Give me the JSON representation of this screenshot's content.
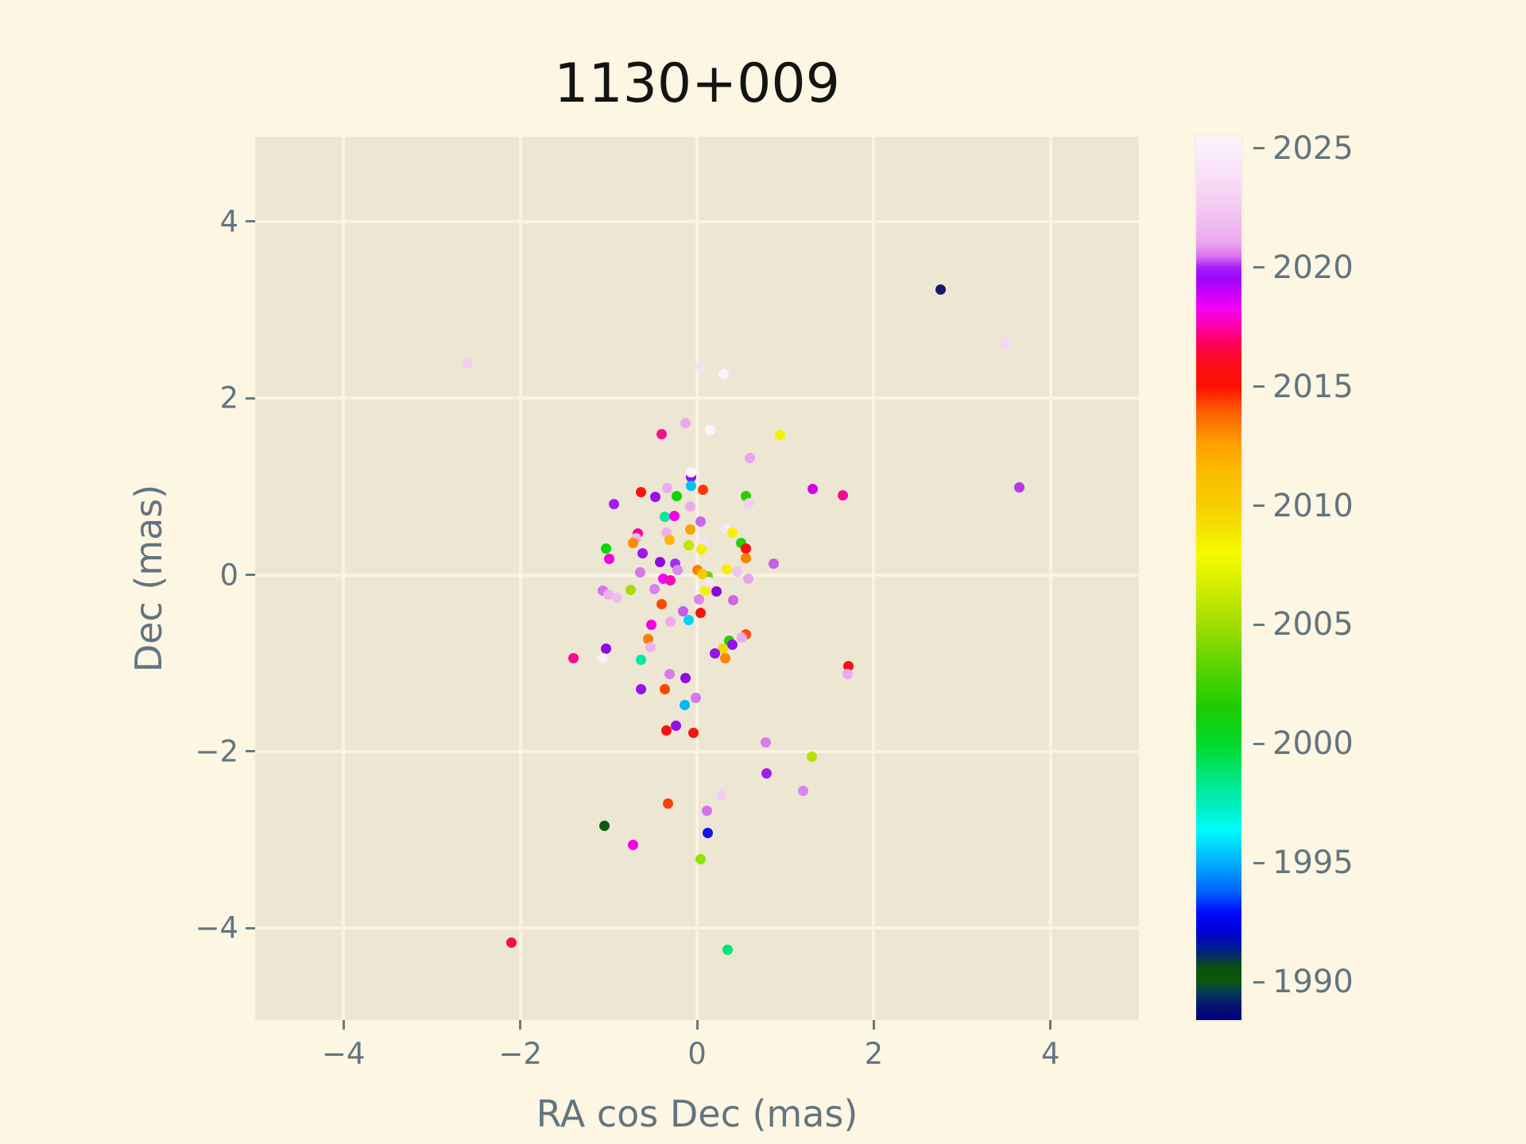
{
  "colors": {
    "figure_bg": "#fdf6e3",
    "axes_bg": "#ece6d3",
    "grid": "#faf3e1",
    "tick_text": "#62757f",
    "title_text": "#141414"
  },
  "chart_data": {
    "type": "scatter",
    "title": "1130+009",
    "xlabel": "RA cos Dec (mas)",
    "ylabel": "Dec (mas)",
    "xlim": [
      -5,
      5
    ],
    "ylim": [
      -5.04,
      4.96
    ],
    "xticks": [
      -4,
      -2,
      0,
      2,
      4
    ],
    "yticks": [
      -4,
      -2,
      0,
      2,
      4
    ],
    "grid": true,
    "marker_size_px": 13,
    "colorbar": {
      "colormap": "gist_ncar",
      "vmin": 1988.4,
      "vmax": 2025.5,
      "ticks": [
        2025,
        2020,
        2015,
        2010,
        2005,
        2000,
        1995,
        1990
      ],
      "gradient_stops": [
        {
          "pos": 0.0,
          "color": "#fdf4fd"
        },
        {
          "pos": 0.03,
          "color": "#fae6f9"
        },
        {
          "pos": 0.06,
          "color": "#f6d7f5"
        },
        {
          "pos": 0.095,
          "color": "#f0bef0"
        },
        {
          "pos": 0.12,
          "color": "#eba6ee"
        },
        {
          "pos": 0.135,
          "color": "#dc73f0"
        },
        {
          "pos": 0.148,
          "color": "#a81ff6"
        },
        {
          "pos": 0.16,
          "color": "#9a07f8"
        },
        {
          "pos": 0.175,
          "color": "#c400fa"
        },
        {
          "pos": 0.195,
          "color": "#f400f4"
        },
        {
          "pos": 0.215,
          "color": "#fd00a8"
        },
        {
          "pos": 0.235,
          "color": "#fe0054"
        },
        {
          "pos": 0.255,
          "color": "#fd0d1c"
        },
        {
          "pos": 0.283,
          "color": "#fb0f00"
        },
        {
          "pos": 0.31,
          "color": "#fc5c00"
        },
        {
          "pos": 0.345,
          "color": "#fd9d00"
        },
        {
          "pos": 0.38,
          "color": "#fbbc00"
        },
        {
          "pos": 0.418,
          "color": "#f6cd00"
        },
        {
          "pos": 0.45,
          "color": "#f3e800"
        },
        {
          "pos": 0.47,
          "color": "#f8fb00"
        },
        {
          "pos": 0.505,
          "color": "#d8ef00"
        },
        {
          "pos": 0.553,
          "color": "#a0dc00"
        },
        {
          "pos": 0.6,
          "color": "#58d400"
        },
        {
          "pos": 0.645,
          "color": "#1ecc00"
        },
        {
          "pos": 0.688,
          "color": "#00d92c"
        },
        {
          "pos": 0.725,
          "color": "#00e77e"
        },
        {
          "pos": 0.76,
          "color": "#00efc4"
        },
        {
          "pos": 0.785,
          "color": "#00fbfb"
        },
        {
          "pos": 0.823,
          "color": "#00acfb"
        },
        {
          "pos": 0.855,
          "color": "#0063fb"
        },
        {
          "pos": 0.878,
          "color": "#000bfb"
        },
        {
          "pos": 0.9,
          "color": "#0000d4"
        },
        {
          "pos": 0.92,
          "color": "#001e8e"
        },
        {
          "pos": 0.94,
          "color": "#0b4f12"
        },
        {
          "pos": 0.955,
          "color": "#0a5a08"
        },
        {
          "pos": 0.97,
          "color": "#073860"
        },
        {
          "pos": 0.985,
          "color": "#02106e"
        },
        {
          "pos": 1.0,
          "color": "#000080"
        }
      ]
    },
    "points": [
      {
        "x": 2.76,
        "y": 3.23,
        "yr": 1988.6,
        "c": "#121a6e"
      },
      {
        "x": 3.49,
        "y": 2.63,
        "yr": 2024.0,
        "c": "#f6d6f4"
      },
      {
        "x": -2.59,
        "y": 2.39,
        "yr": 2023.5,
        "c": "#f2cdf0"
      },
      {
        "x": 0.04,
        "y": 2.37,
        "yr": 2024.2,
        "c": "#f8def5"
      },
      {
        "x": 0.3,
        "y": 2.28,
        "yr": 2025.2,
        "c": "#fdf2fc"
      },
      {
        "x": -0.13,
        "y": 1.72,
        "yr": 2022.0,
        "c": "#eba7ec"
      },
      {
        "x": -0.4,
        "y": 1.59,
        "yr": 2017.0,
        "c": "#f2118f"
      },
      {
        "x": 0.15,
        "y": 1.64,
        "yr": 2025.2,
        "c": "#fdf4fd"
      },
      {
        "x": 0.94,
        "y": 1.58,
        "yr": 2008.4,
        "c": "#f8ee00"
      },
      {
        "x": 0.6,
        "y": 1.32,
        "yr": 2022.0,
        "c": "#eaa2eb"
      },
      {
        "x": 3.65,
        "y": 0.99,
        "yr": 2020.7,
        "c": "#b935ea"
      },
      {
        "x": 1.31,
        "y": 0.97,
        "yr": 2019.2,
        "c": "#d303e6"
      },
      {
        "x": 1.65,
        "y": 0.9,
        "yr": 2016.9,
        "c": "#f30d92"
      },
      {
        "x": -0.07,
        "y": 1.11,
        "yr": 2020.2,
        "c": "#9013e8"
      },
      {
        "x": -0.07,
        "y": 1.16,
        "yr": 2025.3,
        "c": "#fdf4fd"
      },
      {
        "x": -0.07,
        "y": 1.01,
        "yr": 1996.5,
        "c": "#00c3f2"
      },
      {
        "x": 0.07,
        "y": 0.96,
        "yr": 2014.4,
        "c": "#fb3a05"
      },
      {
        "x": -0.63,
        "y": 0.94,
        "yr": 2015.4,
        "c": "#f91111"
      },
      {
        "x": -0.34,
        "y": 0.98,
        "yr": 2022.4,
        "c": "#eeadee"
      },
      {
        "x": -0.47,
        "y": 0.88,
        "yr": 2020.2,
        "c": "#9a0ff2"
      },
      {
        "x": -0.23,
        "y": 0.89,
        "yr": 2001.8,
        "c": "#0fd400"
      },
      {
        "x": 0.55,
        "y": 0.89,
        "yr": 2002.8,
        "c": "#2ecc00"
      },
      {
        "x": 0.59,
        "y": 0.81,
        "yr": 2023.6,
        "c": "#f3d0f2"
      },
      {
        "x": -0.94,
        "y": 0.8,
        "yr": 2020.4,
        "c": "#a21df0"
      },
      {
        "x": -0.08,
        "y": 0.77,
        "yr": 2022.4,
        "c": "#edabee"
      },
      {
        "x": -0.36,
        "y": 0.66,
        "yr": 1998.4,
        "c": "#00e8a4"
      },
      {
        "x": -0.26,
        "y": 0.67,
        "yr": 2018.0,
        "c": "#f202e2"
      },
      {
        "x": 0.04,
        "y": 0.6,
        "yr": 2021.2,
        "c": "#cb63ea"
      },
      {
        "x": -0.08,
        "y": 0.51,
        "yr": 2011.7,
        "c": "#fca403"
      },
      {
        "x": 0.33,
        "y": 0.52,
        "yr": 2024.6,
        "c": "#fae8f8"
      },
      {
        "x": 0.4,
        "y": 0.48,
        "yr": 2008.4,
        "c": "#f6f000"
      },
      {
        "x": -0.35,
        "y": 0.48,
        "yr": 2022.4,
        "c": "#eeaeee"
      },
      {
        "x": -0.67,
        "y": 0.47,
        "yr": 2017.4,
        "c": "#f1079e"
      },
      {
        "x": -0.69,
        "y": 0.41,
        "yr": 2022.6,
        "c": "#efb5ef"
      },
      {
        "x": -0.72,
        "y": 0.36,
        "yr": 2012.2,
        "c": "#fb8a00"
      },
      {
        "x": -0.31,
        "y": 0.4,
        "yr": 2011.3,
        "c": "#fdb500"
      },
      {
        "x": -1.03,
        "y": 0.3,
        "yr": 2001.5,
        "c": "#06d806"
      },
      {
        "x": -0.99,
        "y": 0.18,
        "yr": 2018.0,
        "c": "#f501df"
      },
      {
        "x": -0.62,
        "y": 0.24,
        "yr": 2020.3,
        "c": "#9c13f0"
      },
      {
        "x": -0.09,
        "y": 0.33,
        "yr": 2006.6,
        "c": "#c6e400"
      },
      {
        "x": 0.06,
        "y": 0.36,
        "yr": 2024.2,
        "c": "#f9e0f7"
      },
      {
        "x": 0.05,
        "y": 0.29,
        "yr": 2008.2,
        "c": "#f4ef00"
      },
      {
        "x": 0.5,
        "y": 0.36,
        "yr": 2002.8,
        "c": "#2ccc02"
      },
      {
        "x": 0.55,
        "y": 0.3,
        "yr": 2015.4,
        "c": "#f81010"
      },
      {
        "x": 0.55,
        "y": 0.19,
        "yr": 2012.6,
        "c": "#fb7e00"
      },
      {
        "x": 0.87,
        "y": 0.13,
        "yr": 2021.1,
        "c": "#c75fe8"
      },
      {
        "x": -0.42,
        "y": 0.14,
        "yr": 2020.3,
        "c": "#8f0be0"
      },
      {
        "x": -0.25,
        "y": 0.13,
        "yr": 2020.6,
        "c": "#a431ee"
      },
      {
        "x": -0.22,
        "y": 0.05,
        "yr": 2021.9,
        "c": "#dc8aec"
      },
      {
        "x": -0.64,
        "y": 0.03,
        "yr": 2021.7,
        "c": "#d678ea"
      },
      {
        "x": 0.0,
        "y": 0.05,
        "yr": 2012.5,
        "c": "#fb8000"
      },
      {
        "x": 0.12,
        "y": -0.02,
        "yr": 2004.3,
        "c": "#6fd400"
      },
      {
        "x": 0.06,
        "y": 0.01,
        "yr": 2010.4,
        "c": "#f7c900"
      },
      {
        "x": 0.34,
        "y": 0.06,
        "yr": 2008.3,
        "c": "#f6f000"
      },
      {
        "x": 0.45,
        "y": 0.04,
        "yr": 2023.0,
        "c": "#eec4ef"
      },
      {
        "x": 0.58,
        "y": -0.04,
        "yr": 2022.2,
        "c": "#eaa4ea"
      },
      {
        "x": 0.22,
        "y": -0.19,
        "yr": 2020.2,
        "c": "#8a06dd"
      },
      {
        "x": 0.09,
        "y": -0.18,
        "yr": 2008.3,
        "c": "#f6ef00"
      },
      {
        "x": 0.41,
        "y": -0.29,
        "yr": 2021.0,
        "c": "#cc66e8"
      },
      {
        "x": 0.02,
        "y": -0.28,
        "yr": 2021.8,
        "c": "#db85ec"
      },
      {
        "x": -0.38,
        "y": -0.04,
        "yr": 2018.1,
        "c": "#f800f0"
      },
      {
        "x": -0.3,
        "y": -0.06,
        "yr": 2017.3,
        "c": "#f60bb0"
      },
      {
        "x": 0.13,
        "y": -0.08,
        "yr": 2024.3,
        "c": "#fae5f8"
      },
      {
        "x": -0.75,
        "y": -0.17,
        "yr": 2005.6,
        "c": "#a8dc00"
      },
      {
        "x": -0.48,
        "y": -0.16,
        "yr": 2021.8,
        "c": "#da82ec"
      },
      {
        "x": -1.07,
        "y": -0.18,
        "yr": 2021.6,
        "c": "#d573eb"
      },
      {
        "x": -1.0,
        "y": -0.22,
        "yr": 2022.5,
        "c": "#eeb0ee"
      },
      {
        "x": -0.9,
        "y": -0.26,
        "yr": 2022.8,
        "c": "#f0bdf0"
      },
      {
        "x": -0.4,
        "y": -0.33,
        "yr": 2013.9,
        "c": "#fb4a04"
      },
      {
        "x": -0.16,
        "y": -0.41,
        "yr": 2021.0,
        "c": "#c85cea"
      },
      {
        "x": -0.09,
        "y": -0.51,
        "yr": 1996.9,
        "c": "#00d6f2"
      },
      {
        "x": 0.04,
        "y": -0.43,
        "yr": 2015.4,
        "c": "#f81212"
      },
      {
        "x": -0.52,
        "y": -0.57,
        "yr": 2018.0,
        "c": "#f502e0"
      },
      {
        "x": -0.3,
        "y": -0.53,
        "yr": 2022.4,
        "c": "#eeaceb"
      },
      {
        "x": -0.55,
        "y": -0.73,
        "yr": 2012.4,
        "c": "#fb7c00"
      },
      {
        "x": -0.53,
        "y": -0.82,
        "yr": 2022.6,
        "c": "#efb2ef"
      },
      {
        "x": -1.03,
        "y": -0.84,
        "yr": 2020.1,
        "c": "#8d0ae2"
      },
      {
        "x": -1.4,
        "y": -0.94,
        "yr": 2016.9,
        "c": "#f20e8e"
      },
      {
        "x": -1.07,
        "y": -0.94,
        "yr": 2024.7,
        "c": "#fbeefa"
      },
      {
        "x": -0.63,
        "y": -0.96,
        "yr": 1998.4,
        "c": "#00e8a6"
      },
      {
        "x": 0.36,
        "y": -0.75,
        "yr": 2002.6,
        "c": "#28cc00"
      },
      {
        "x": 0.4,
        "y": -0.79,
        "yr": 2020.2,
        "c": "#9410ea"
      },
      {
        "x": 0.55,
        "y": -0.67,
        "yr": 2013.8,
        "c": "#fb4e03"
      },
      {
        "x": 0.51,
        "y": -0.71,
        "yr": 2022.4,
        "c": "#edaaed"
      },
      {
        "x": 0.29,
        "y": -0.84,
        "yr": 2009.8,
        "c": "#f2d800"
      },
      {
        "x": 0.2,
        "y": -0.89,
        "yr": 2020.2,
        "c": "#9512ec"
      },
      {
        "x": 0.32,
        "y": -0.94,
        "yr": 2012.6,
        "c": "#fb8602"
      },
      {
        "x": -0.31,
        "y": -1.12,
        "yr": 2021.7,
        "c": "#d87cec"
      },
      {
        "x": -0.13,
        "y": -1.17,
        "yr": 2020.2,
        "c": "#8f0ce4"
      },
      {
        "x": -0.63,
        "y": -1.29,
        "yr": 2020.3,
        "c": "#9712ee"
      },
      {
        "x": -0.36,
        "y": -1.29,
        "yr": 2013.9,
        "c": "#fb4704"
      },
      {
        "x": -0.01,
        "y": -1.39,
        "yr": 2021.6,
        "c": "#d778ec"
      },
      {
        "x": -0.14,
        "y": -1.47,
        "yr": 1996.2,
        "c": "#00b8f6"
      },
      {
        "x": -0.24,
        "y": -1.71,
        "yr": 2020.2,
        "c": "#9110e8"
      },
      {
        "x": -0.35,
        "y": -1.76,
        "yr": 2015.4,
        "c": "#f81111"
      },
      {
        "x": -0.04,
        "y": -1.79,
        "yr": 2015.3,
        "c": "#f91414"
      },
      {
        "x": 0.78,
        "y": -1.9,
        "yr": 2021.7,
        "c": "#d77cee"
      },
      {
        "x": 1.3,
        "y": -2.06,
        "yr": 2005.9,
        "c": "#b4e000"
      },
      {
        "x": 0.79,
        "y": -2.25,
        "yr": 2020.4,
        "c": "#a01cf2"
      },
      {
        "x": 1.2,
        "y": -2.45,
        "yr": 2021.8,
        "c": "#dc85ee"
      },
      {
        "x": 0.27,
        "y": -2.5,
        "yr": 2023.4,
        "c": "#f2ccf2"
      },
      {
        "x": 0.11,
        "y": -2.67,
        "yr": 2021.5,
        "c": "#d673ec"
      },
      {
        "x": -0.33,
        "y": -2.59,
        "yr": 2013.7,
        "c": "#f94208"
      },
      {
        "x": -1.05,
        "y": -2.84,
        "yr": 1990.3,
        "c": "#0b5c10"
      },
      {
        "x": 0.12,
        "y": -2.92,
        "yr": 1992.8,
        "c": "#1414e8"
      },
      {
        "x": -0.72,
        "y": -3.06,
        "yr": 2018.0,
        "c": "#f502e2"
      },
      {
        "x": 0.04,
        "y": -3.22,
        "yr": 2004.9,
        "c": "#8ce400"
      },
      {
        "x": 1.71,
        "y": -1.03,
        "yr": 2015.1,
        "c": "#f61111"
      },
      {
        "x": 1.7,
        "y": -1.12,
        "yr": 2022.3,
        "c": "#eeaaee"
      },
      {
        "x": -2.1,
        "y": -4.16,
        "yr": 2016.1,
        "c": "#f2113e"
      },
      {
        "x": 0.35,
        "y": -4.24,
        "yr": 1999.3,
        "c": "#00e876"
      }
    ]
  }
}
